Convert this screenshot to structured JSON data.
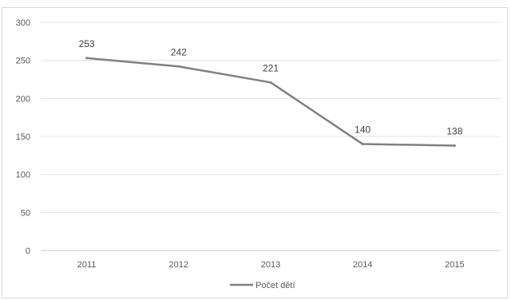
{
  "chart_data": {
    "type": "line",
    "title": "",
    "xlabel": "",
    "ylabel": "",
    "categories": [
      "2011",
      "2012",
      "2013",
      "2014",
      "2015"
    ],
    "series": [
      {
        "name": "Počet dětí",
        "values": [
          253,
          242,
          221,
          140,
          138
        ],
        "color": "#808080"
      }
    ],
    "ylim": [
      0,
      300
    ],
    "yticks": [
      0,
      50,
      100,
      150,
      200,
      250,
      300
    ],
    "grid": true,
    "data_labels": true,
    "legend_position": "bottom"
  }
}
